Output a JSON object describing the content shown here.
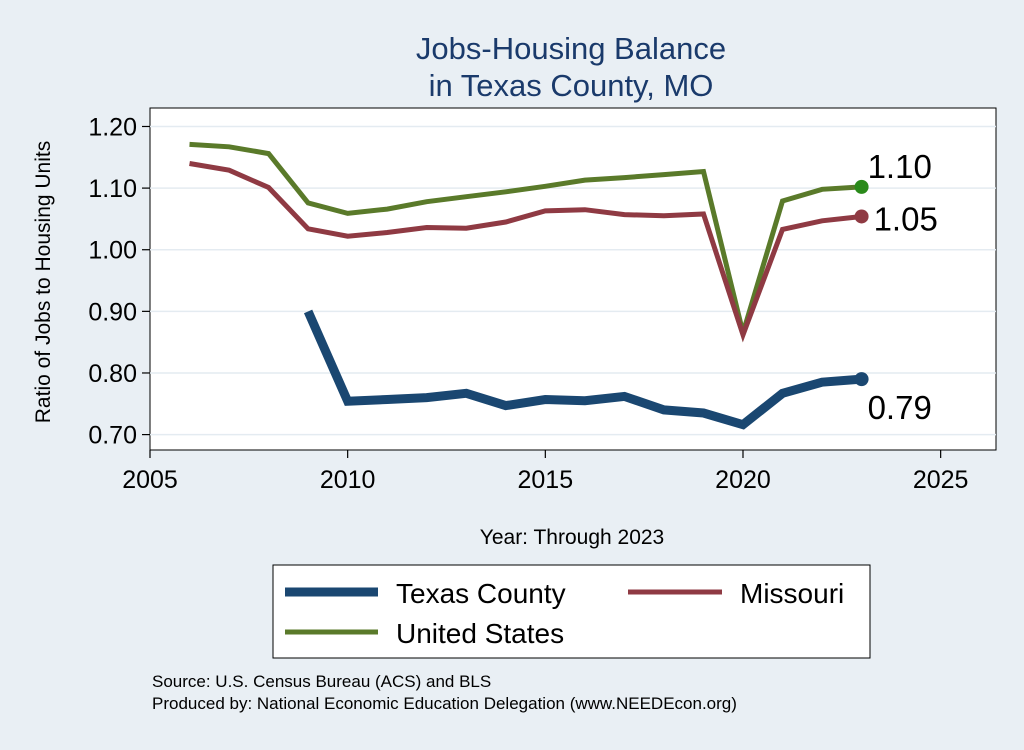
{
  "chart_data": {
    "type": "line",
    "title": [
      "Jobs-Housing Balance",
      "in Texas County, MO"
    ],
    "xlabel": "Year: Through 2023",
    "ylabel": "Ratio of Jobs to Housing Units",
    "xlim": [
      2005,
      2026.4
    ],
    "ylim": [
      0.675,
      1.23
    ],
    "xticks": [
      2005,
      2010,
      2015,
      2020,
      2025
    ],
    "yticks": [
      0.7,
      0.8,
      0.9,
      1.0,
      1.1,
      1.2
    ],
    "ytick_labels": [
      "0.70",
      "0.80",
      "0.90",
      "1.00",
      "1.10",
      "1.20"
    ],
    "grid": true,
    "legend_position": "bottom",
    "series": [
      {
        "name": "Texas County",
        "color": "#1a4771",
        "line_width": 9,
        "x": [
          2009,
          2010,
          2011,
          2012,
          2013,
          2014,
          2015,
          2016,
          2017,
          2018,
          2019,
          2020,
          2021,
          2022,
          2023
        ],
        "values": [
          0.9,
          0.754,
          0.757,
          0.76,
          0.767,
          0.747,
          0.757,
          0.755,
          0.762,
          0.74,
          0.735,
          0.716,
          0.767,
          0.785,
          0.79
        ],
        "end_label": "0.79",
        "end_marker_color": "#1a4771"
      },
      {
        "name": "Missouri",
        "color": "#8f3a43",
        "line_width": 5,
        "x": [
          2006,
          2007,
          2008,
          2009,
          2010,
          2011,
          2012,
          2013,
          2014,
          2015,
          2016,
          2017,
          2018,
          2019,
          2020,
          2021,
          2022,
          2023
        ],
        "values": [
          1.14,
          1.129,
          1.101,
          1.034,
          1.022,
          1.028,
          1.036,
          1.035,
          1.045,
          1.063,
          1.065,
          1.057,
          1.055,
          1.058,
          0.862,
          1.033,
          1.047,
          1.054
        ],
        "end_label": "1.05",
        "end_marker_color": "#8f3a43"
      },
      {
        "name": "United States",
        "color": "#5a7a2a",
        "line_width": 5,
        "x": [
          2006,
          2007,
          2008,
          2009,
          2010,
          2011,
          2012,
          2013,
          2014,
          2015,
          2016,
          2017,
          2018,
          2019,
          2020,
          2021,
          2022,
          2023
        ],
        "values": [
          1.171,
          1.167,
          1.156,
          1.076,
          1.059,
          1.066,
          1.078,
          1.086,
          1.094,
          1.103,
          1.113,
          1.117,
          1.122,
          1.127,
          0.865,
          1.079,
          1.098,
          1.102
        ],
        "end_label": "1.10",
        "end_marker_color": "#2a8a1a"
      }
    ]
  },
  "footer": {
    "source": "Source: U.S. Census Bureau (ACS) and BLS",
    "produced_by": "Produced by: National Economic Education Delegation (www.NEEDEcon.org)"
  }
}
